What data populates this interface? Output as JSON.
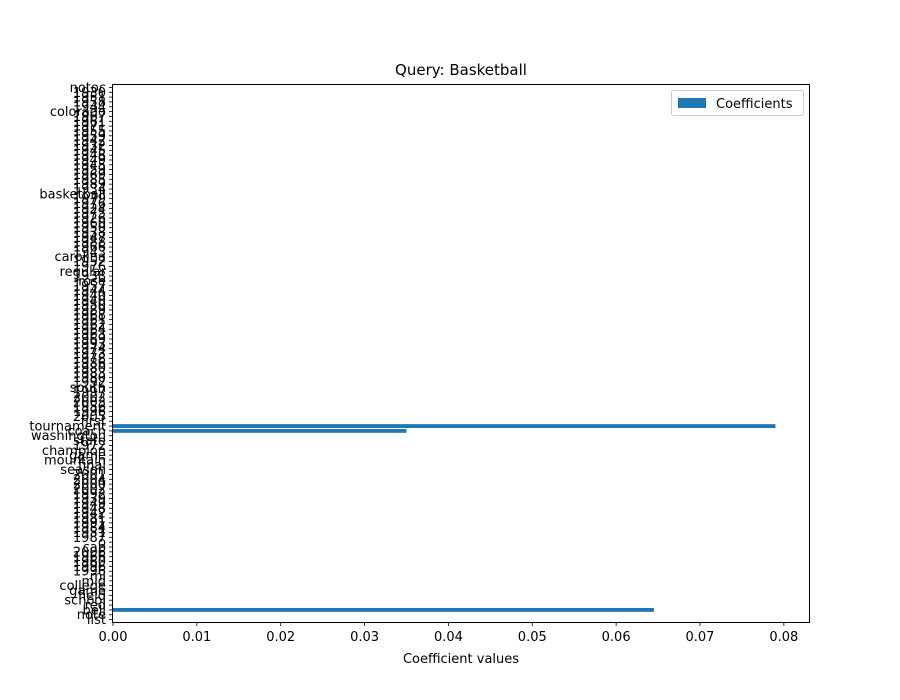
{
  "chart_data": {
    "type": "bar",
    "orientation": "horizontal",
    "title": "Query: Basketball",
    "xlabel": "Coefficient values",
    "ylabel": "",
    "xlim": [
      0,
      0.083
    ],
    "xticks": [
      0.0,
      0.01,
      0.02,
      0.03,
      0.04,
      0.05,
      0.06,
      0.07,
      0.08
    ],
    "xtick_labels": [
      "0.00",
      "0.01",
      "0.02",
      "0.03",
      "0.04",
      "0.05",
      "0.06",
      "0.07",
      "0.08"
    ],
    "grid": false,
    "legend_position": "top-right",
    "bar_color": "#1f77b4",
    "series": [
      {
        "name": "Coefficients"
      }
    ],
    "categories": [
      "list",
      "note",
      "bell",
      "red",
      "school",
      "field",
      "game",
      "college",
      "mid",
      "ml",
      "1996",
      "1996",
      "1960",
      "1966",
      "2006",
      "cap",
      "o",
      "1987",
      "1951",
      "1984",
      "1991",
      "1981",
      "1942",
      "1948",
      "1949",
      "1939",
      "1992",
      "2002",
      "2000",
      "2004",
      "2001",
      "season",
      "final",
      "mountain",
      "game",
      "champion",
      "1972",
      "state",
      "washington",
      "coach",
      "tournament",
      "first",
      "2005",
      "1996",
      "1956",
      "2003",
      "2002",
      "1997",
      "south",
      "1992",
      "1980",
      "1983",
      "1980",
      "1986",
      "1978",
      "1973",
      "1974",
      "1993",
      "1969",
      "1963",
      "1964",
      "1962",
      "1961",
      "1968",
      "1989",
      "1950",
      "1940",
      "1940",
      "1944",
      "1957",
      "rose",
      "1938",
      "regular",
      "1976",
      "1952",
      "carolina",
      "1943",
      "1966",
      "1988",
      "1947",
      "1938",
      "1950",
      "1960",
      "1926",
      "1975",
      "1924",
      "1976",
      "1979",
      "basketball",
      "1934",
      "1989",
      "1985",
      "1969",
      "1959",
      "1945",
      "1949",
      "1948",
      "1945",
      "1932",
      "1942",
      "1959",
      "1955",
      "1971",
      "1961",
      "1967",
      "colorado",
      "1944",
      "1958",
      "1951",
      "1930",
      "notoc"
    ],
    "values": [
      0,
      0,
      0.0645,
      0,
      0,
      0,
      0,
      0,
      0,
      0,
      0,
      0,
      0,
      0,
      0,
      0,
      0,
      0,
      0,
      0,
      0,
      0,
      0,
      0,
      0,
      0,
      0,
      0,
      0,
      0,
      0,
      0,
      0,
      0,
      0,
      0,
      0,
      0,
      0,
      0.035,
      0.079,
      0,
      0,
      0,
      0,
      0,
      0,
      0,
      0,
      0,
      0,
      0,
      0,
      0,
      0,
      0,
      0,
      0,
      0,
      0,
      0,
      0,
      0,
      0,
      0,
      0,
      0,
      0,
      0,
      0,
      0,
      0,
      0,
      0,
      0,
      0,
      0,
      0,
      0,
      0,
      0,
      0,
      0,
      0,
      0,
      0,
      0,
      0,
      0,
      0,
      0,
      0,
      0,
      0,
      0,
      0,
      0,
      0,
      0,
      0,
      0,
      0,
      0,
      0,
      0,
      0,
      0,
      0,
      0,
      0,
      0
    ]
  }
}
